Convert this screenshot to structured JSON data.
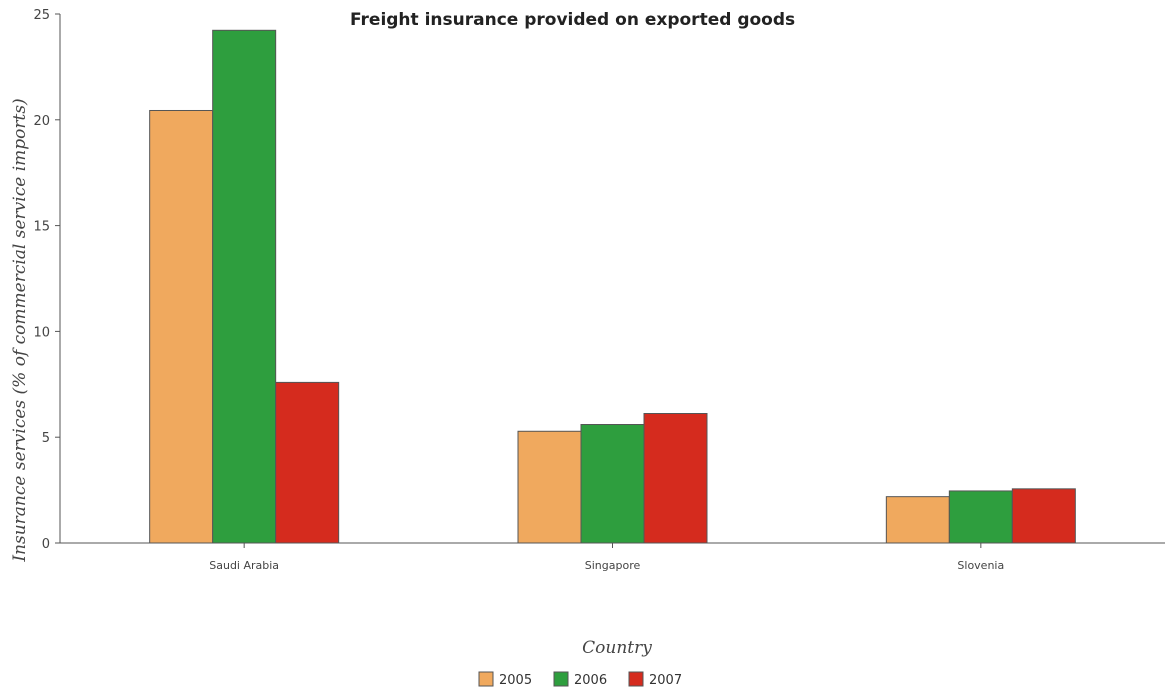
{
  "chart_data": {
    "type": "bar",
    "title": "Freight insurance provided on exported goods",
    "xlabel": "Country",
    "ylabel": "Insurance services (% of commercial service imports)",
    "categories": [
      "Saudi Arabia",
      "Singapore",
      "Slovenia"
    ],
    "series": [
      {
        "name": "2005",
        "color": "#f0a95e",
        "values": [
          20.44,
          5.28,
          2.19
        ]
      },
      {
        "name": "2006",
        "color": "#2e9e3e",
        "values": [
          24.23,
          5.6,
          2.46
        ]
      },
      {
        "name": "2007",
        "color": "#d52b1e",
        "values": [
          7.59,
          6.12,
          2.56
        ]
      }
    ],
    "ylim": [
      0,
      25
    ],
    "yticks": [
      0,
      5,
      10,
      15,
      20,
      25
    ],
    "grid": false,
    "legend_position": "bottom-center"
  }
}
